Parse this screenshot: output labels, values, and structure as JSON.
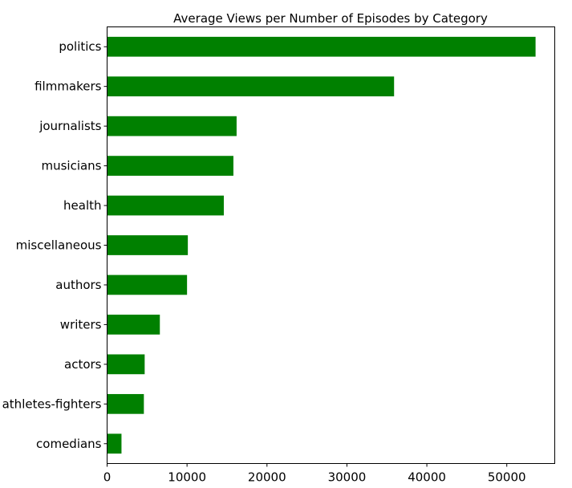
{
  "chart_data": {
    "type": "bar",
    "orientation": "horizontal",
    "title": "Average Views per Number of Episodes by Category",
    "xlabel": "",
    "ylabel": "",
    "categories": [
      "politics",
      "filmmakers",
      "journalists",
      "musicians",
      "health",
      "miscellaneous",
      "authors",
      "writers",
      "actors",
      "athletes-fighters",
      "comedians"
    ],
    "values": [
      53600,
      35900,
      16200,
      15800,
      14600,
      10100,
      10000,
      6600,
      4700,
      4600,
      1800
    ],
    "xlim": [
      0,
      56000
    ],
    "xticks": [
      0,
      10000,
      20000,
      30000,
      40000,
      50000
    ],
    "xtick_labels": [
      "0",
      "10000",
      "20000",
      "30000",
      "40000",
      "50000"
    ],
    "bar_color": "#008000",
    "grid": false,
    "legend": "none"
  }
}
